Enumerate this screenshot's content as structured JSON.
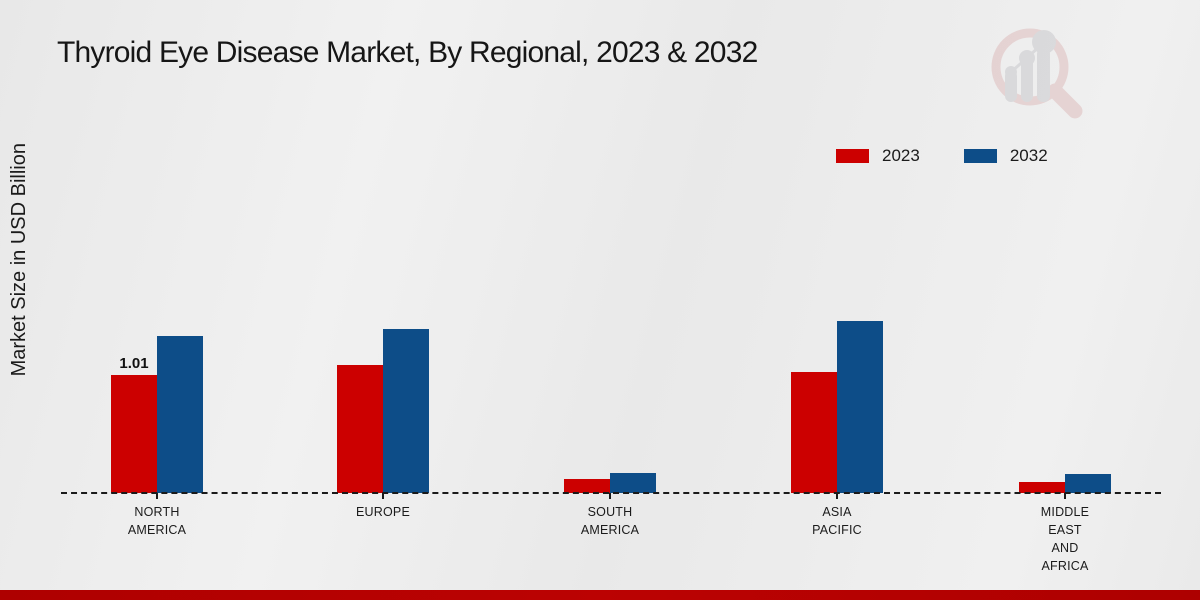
{
  "page": {
    "title": "Thyroid Eye Disease Market, By Regional, 2023 & 2032",
    "y_axis_label": "Market Size in USD Billion"
  },
  "legend": {
    "items": [
      {
        "label": "2023",
        "color": "#cc0000"
      },
      {
        "label": "2032",
        "color": "#0d4d88"
      }
    ]
  },
  "chart_data": {
    "type": "bar",
    "title": "Thyroid Eye Disease Market, By Regional, 2023 & 2032",
    "xlabel": "",
    "ylabel": "Market Size in USD Billion",
    "categories": [
      "NORTH AMERICA",
      "EUROPE",
      "SOUTH AMERICA",
      "ASIA PACIFIC",
      "MIDDLE EAST AND AFRICA"
    ],
    "tick_labels": [
      "NORTH\nAMERICA",
      "EUROPE",
      "SOUTH\nAMERICA",
      "ASIA\nPACIFIC",
      "MIDDLE\nEAST\nAND\nAFRICA"
    ],
    "series": [
      {
        "name": "2023",
        "color": "#cc0000",
        "values": [
          1.01,
          1.1,
          0.12,
          1.04,
          0.09
        ]
      },
      {
        "name": "2032",
        "color": "#0d4d88",
        "values": [
          1.34,
          1.4,
          0.17,
          1.47,
          0.16
        ]
      }
    ],
    "annotations": [
      {
        "series_index": 0,
        "category_index": 0,
        "text": "1.01"
      }
    ],
    "ylim": [
      0,
      1.6
    ],
    "grid": false,
    "legend_position": "top-right",
    "baseline_style": "dashed",
    "axis_ticks_visible": true
  },
  "branding": {
    "watermark_icon": "bar-chart-magnifier-watermark"
  },
  "colors": {
    "background": "#ececec",
    "series_2023": "#cc0000",
    "series_2032": "#0d4d88",
    "bottom_strip": "#b30000",
    "text": "#1b1b1b"
  }
}
